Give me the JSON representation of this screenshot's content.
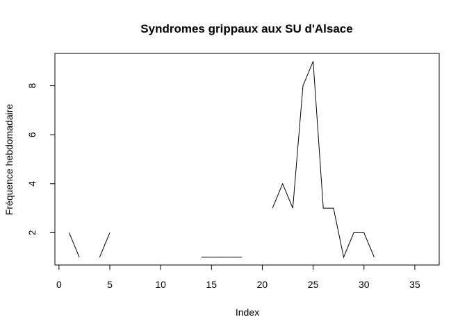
{
  "chart_data": {
    "type": "line",
    "title": "Syndromes grippaux aux SU d'Alsace",
    "xlabel": "Index",
    "ylabel": "Fréquence hebdomadaire",
    "xlim": [
      0,
      37
    ],
    "ylim": [
      1,
      9
    ],
    "xticks": [
      0,
      5,
      10,
      15,
      20,
      25,
      30,
      35
    ],
    "yticks": [
      2,
      4,
      6,
      8
    ],
    "grid": false,
    "legend": "none",
    "series": [
      {
        "color": "#000000",
        "x": [
          1,
          2,
          3,
          4,
          5,
          6,
          7,
          8,
          9,
          10,
          11,
          12,
          13,
          14,
          15,
          16,
          17,
          18,
          19,
          20,
          21,
          22,
          23,
          24,
          25,
          26,
          27,
          28,
          29,
          30,
          31,
          32,
          33,
          34,
          35,
          36
        ],
        "y": [
          2,
          1,
          null,
          1,
          2,
          null,
          null,
          null,
          null,
          null,
          null,
          null,
          null,
          1,
          1,
          1,
          1,
          1,
          null,
          null,
          3,
          4,
          3,
          8,
          9,
          3,
          3,
          1,
          2,
          2,
          1,
          null,
          null,
          null,
          null,
          null
        ]
      }
    ]
  }
}
